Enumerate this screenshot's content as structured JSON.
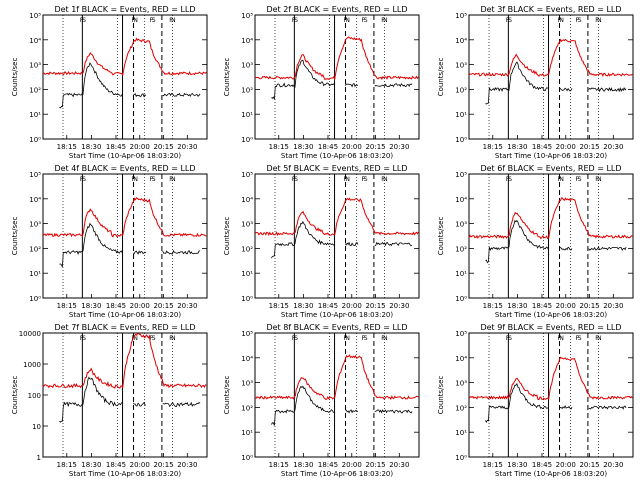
{
  "figure": {
    "ylabel": "Counts/sec",
    "xlabel": "Start Time (10-Apr-06 18:03:20)",
    "x_tick_labels": [
      "18:15",
      "18:30",
      "18:45",
      "20:00",
      "20:15",
      "20:30"
    ],
    "y_tick_labels_log": [
      "10⁰",
      "10¹",
      "10²",
      "10³",
      "10⁴",
      "10⁵"
    ],
    "y_tick_labels_plain": [
      "1",
      "10",
      "100",
      "1000",
      "10000"
    ],
    "flag_labels": [
      "F",
      "S",
      "F",
      "N",
      "F",
      "S",
      "F",
      "N"
    ],
    "colors": {
      "events": "#000000",
      "lld": "#e00000",
      "background": "#ffffff"
    }
  },
  "chart_data": [
    {
      "type": "line",
      "title": "Det 1f BLACK = Events, RED = LLD",
      "ylabel": "Counts/sec",
      "xlabel": "Start Time (10-Apr-06 18:03:20)",
      "y_scale": "log",
      "ylim": [
        1,
        100000
      ],
      "x_ticks": [
        "18:15",
        "18:30",
        "18:45",
        "20:00",
        "20:15",
        "20:30"
      ],
      "y_ticks": [
        "10⁰",
        "10¹",
        "10²",
        "10³",
        "10⁴",
        "10⁵"
      ],
      "series": [
        {
          "name": "Events",
          "color": "#000000",
          "events_base": 60,
          "events_peak": 1200,
          "events_tail": 60
        },
        {
          "name": "LLD",
          "color": "#e00000",
          "lld_base": 450,
          "lld_peak": 3000,
          "lld_plateau": 10000
        }
      ]
    },
    {
      "type": "line",
      "title": "Det 2f BLACK = Events, RED = LLD",
      "ylabel": "Counts/sec",
      "xlabel": "Start Time (10-Apr-06 18:03:20)",
      "y_scale": "log",
      "ylim": [
        1,
        100000
      ],
      "x_ticks": [
        "18:15",
        "18:30",
        "18:45",
        "20:00",
        "20:15",
        "20:30"
      ],
      "y_ticks": [
        "10⁰",
        "10¹",
        "10²",
        "10³",
        "10⁴",
        "10⁵"
      ],
      "series": [
        {
          "name": "Events",
          "color": "#000000",
          "events_base": 150,
          "events_peak": 1500,
          "events_tail": 150
        },
        {
          "name": "LLD",
          "color": "#e00000",
          "lld_base": 300,
          "lld_peak": 2500,
          "lld_plateau": 12000
        }
      ]
    },
    {
      "type": "line",
      "title": "Det 3f BLACK = Events, RED = LLD",
      "ylabel": "Counts/sec",
      "xlabel": "Start Time (10-Apr-06 18:03:20)",
      "y_scale": "log",
      "ylim": [
        1,
        100000
      ],
      "x_ticks": [
        "18:15",
        "18:30",
        "18:45",
        "20:00",
        "20:15",
        "20:30"
      ],
      "y_ticks": [
        "10⁰",
        "10¹",
        "10²",
        "10³",
        "10⁴",
        "10⁵"
      ],
      "series": [
        {
          "name": "Events",
          "color": "#000000",
          "events_base": 100,
          "events_peak": 1200,
          "events_tail": 100
        },
        {
          "name": "LLD",
          "color": "#e00000",
          "lld_base": 400,
          "lld_peak": 2500,
          "lld_plateau": 10000
        }
      ]
    },
    {
      "type": "line",
      "title": "Det 4f BLACK = Events, RED = LLD",
      "ylabel": "Counts/sec",
      "xlabel": "Start Time (10-Apr-06 18:03:20)",
      "y_scale": "log",
      "ylim": [
        1,
        100000
      ],
      "x_ticks": [
        "18:15",
        "18:30",
        "18:45",
        "20:00",
        "20:15",
        "20:30"
      ],
      "y_ticks": [
        "10⁰",
        "10¹",
        "10²",
        "10³",
        "10⁴",
        "10⁵"
      ],
      "series": [
        {
          "name": "Events",
          "color": "#000000",
          "events_base": 70,
          "events_peak": 1000,
          "events_tail": 70
        },
        {
          "name": "LLD",
          "color": "#e00000",
          "lld_base": 350,
          "lld_peak": 4000,
          "lld_plateau": 10000
        }
      ]
    },
    {
      "type": "line",
      "title": "Det 5f BLACK = Events, RED = LLD",
      "ylabel": "Counts/sec",
      "xlabel": "Start Time (10-Apr-06 18:03:20)",
      "y_scale": "log",
      "ylim": [
        1,
        100000
      ],
      "x_ticks": [
        "18:15",
        "18:30",
        "18:45",
        "20:00",
        "20:15",
        "20:30"
      ],
      "y_ticks": [
        "10⁰",
        "10¹",
        "10²",
        "10³",
        "10⁴",
        "10⁵"
      ],
      "series": [
        {
          "name": "Events",
          "color": "#000000",
          "events_base": 150,
          "events_peak": 1200,
          "events_tail": 150
        },
        {
          "name": "LLD",
          "color": "#e00000",
          "lld_base": 400,
          "lld_peak": 3000,
          "lld_plateau": 10000
        }
      ]
    },
    {
      "type": "line",
      "title": "Det 6f BLACK = Events, RED = LLD",
      "ylabel": "Counts/sec",
      "xlabel": "Start Time (10-Apr-06 18:03:20)",
      "y_scale": "log",
      "ylim": [
        1,
        100000
      ],
      "x_ticks": [
        "18:15",
        "18:30",
        "18:45",
        "20:00",
        "20:15",
        "20:30"
      ],
      "y_ticks": [
        "10⁰",
        "10¹",
        "10²",
        "10³",
        "10⁴",
        "10⁵"
      ],
      "series": [
        {
          "name": "Events",
          "color": "#000000",
          "events_base": 100,
          "events_peak": 1500,
          "events_tail": 100
        },
        {
          "name": "LLD",
          "color": "#e00000",
          "lld_base": 300,
          "lld_peak": 3000,
          "lld_plateau": 10000
        }
      ]
    },
    {
      "type": "line",
      "title": "Det 7f BLACK = Events, RED = LLD",
      "ylabel": "Counts/sec",
      "xlabel": "Start Time (10-Apr-06 18:03:20)",
      "y_scale": "log",
      "ylim": [
        1,
        10000
      ],
      "x_ticks": [
        "18:15",
        "18:30",
        "18:45",
        "20:00",
        "20:15",
        "20:30"
      ],
      "y_ticks": [
        "1",
        "10",
        "100",
        "1000",
        "10000"
      ],
      "series": [
        {
          "name": "Events",
          "color": "#000000",
          "events_base": 50,
          "events_peak": 400,
          "events_tail": 50
        },
        {
          "name": "LLD",
          "color": "#e00000",
          "lld_base": 200,
          "lld_peak": 700,
          "lld_plateau": 9000
        }
      ]
    },
    {
      "type": "line",
      "title": "Det 8f BLACK = Events, RED = LLD",
      "ylabel": "Counts/sec",
      "xlabel": "Start Time (10-Apr-06 18:03:20)",
      "y_scale": "log",
      "ylim": [
        1,
        100000
      ],
      "x_ticks": [
        "18:15",
        "18:30",
        "18:45",
        "20:00",
        "20:15",
        "20:30"
      ],
      "y_ticks": [
        "10⁰",
        "10¹",
        "10²",
        "10³",
        "10⁴",
        "10⁵"
      ],
      "series": [
        {
          "name": "Events",
          "color": "#000000",
          "events_base": 70,
          "events_peak": 800,
          "events_tail": 70
        },
        {
          "name": "LLD",
          "color": "#e00000",
          "lld_base": 250,
          "lld_peak": 1800,
          "lld_plateau": 12000
        }
      ]
    },
    {
      "type": "line",
      "title": "Det 9f BLACK = Events, RED = LLD",
      "ylabel": "Counts/sec",
      "xlabel": "Start Time (10-Apr-06 18:03:20)",
      "y_scale": "log",
      "ylim": [
        1,
        100000
      ],
      "x_ticks": [
        "18:15",
        "18:30",
        "18:45",
        "20:00",
        "20:15",
        "20:30"
      ],
      "y_ticks": [
        "10⁰",
        "10¹",
        "10²",
        "10³",
        "10⁴",
        "10⁵"
      ],
      "series": [
        {
          "name": "Events",
          "color": "#000000",
          "events_base": 100,
          "events_peak": 900,
          "events_tail": 100
        },
        {
          "name": "LLD",
          "color": "#e00000",
          "lld_base": 250,
          "lld_peak": 1500,
          "lld_plateau": 10000
        }
      ]
    }
  ]
}
